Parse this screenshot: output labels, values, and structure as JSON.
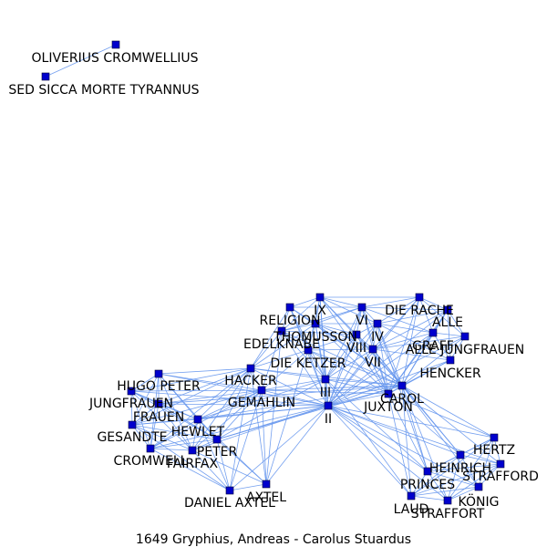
{
  "caption": "1649  Gryphius,  Andreas  -  Carolus  Stuardus",
  "colors": {
    "edge": "#6495ED",
    "node": "#0000CD",
    "text": "#000000"
  },
  "nodes": [
    {
      "id": "oliverius",
      "label": "OLIVERIUS CROMWELLIUS"
    },
    {
      "id": "sed",
      "label": "SED SICCA MORTE TYRANNUS"
    },
    {
      "id": "ix",
      "label": "IX"
    },
    {
      "id": "religion",
      "label": "RELIGION"
    },
    {
      "id": "vi",
      "label": "VI"
    },
    {
      "id": "dierache",
      "label": "DIE RACHE"
    },
    {
      "id": "alle",
      "label": "ALLE"
    },
    {
      "id": "thomusson",
      "label": "THOMUSSON"
    },
    {
      "id": "iv",
      "label": "IV"
    },
    {
      "id": "graff",
      "label": "GRAFF"
    },
    {
      "id": "edelknabe",
      "label": "EDELKNABE"
    },
    {
      "id": "viii",
      "label": "VIII"
    },
    {
      "id": "allejungfrauen",
      "label": "ALLE JUNGFRAUEN"
    },
    {
      "id": "vii",
      "label": "VII"
    },
    {
      "id": "dieketzer",
      "label": "DIE KETZER"
    },
    {
      "id": "hencker",
      "label": "HENCKER"
    },
    {
      "id": "hacker",
      "label": "HACKER"
    },
    {
      "id": "hugopeter",
      "label": "HUGO PETER"
    },
    {
      "id": "iii",
      "label": "III"
    },
    {
      "id": "carol",
      "label": "CAROL"
    },
    {
      "id": "gemahlin",
      "label": "GEMAHLIN"
    },
    {
      "id": "juxton",
      "label": "JUXTON"
    },
    {
      "id": "jungfrauen",
      "label": "JUNGFRAUEN"
    },
    {
      "id": "ii",
      "label": "II"
    },
    {
      "id": "frauen",
      "label": "FRAUEN"
    },
    {
      "id": "gesandte",
      "label": "GESANDTE"
    },
    {
      "id": "hewlet",
      "label": "HEWLET"
    },
    {
      "id": "peter",
      "label": "PETER"
    },
    {
      "id": "cromwell",
      "label": "CROMWELL"
    },
    {
      "id": "fairfax",
      "label": "FAIRFAX"
    },
    {
      "id": "hertz",
      "label": "HERTZ"
    },
    {
      "id": "heinrich",
      "label": "HEINRICH"
    },
    {
      "id": "strafford",
      "label": "STRAFFORD"
    },
    {
      "id": "princes",
      "label": "PRINCES"
    },
    {
      "id": "konig",
      "label": "KÖNIG"
    },
    {
      "id": "laud",
      "label": "LAUD"
    },
    {
      "id": "straffort",
      "label": "STRAFFORT"
    },
    {
      "id": "axtel",
      "label": "AXTEL"
    },
    {
      "id": "danielaxtel",
      "label": "DANIEL AXTEL"
    }
  ]
}
